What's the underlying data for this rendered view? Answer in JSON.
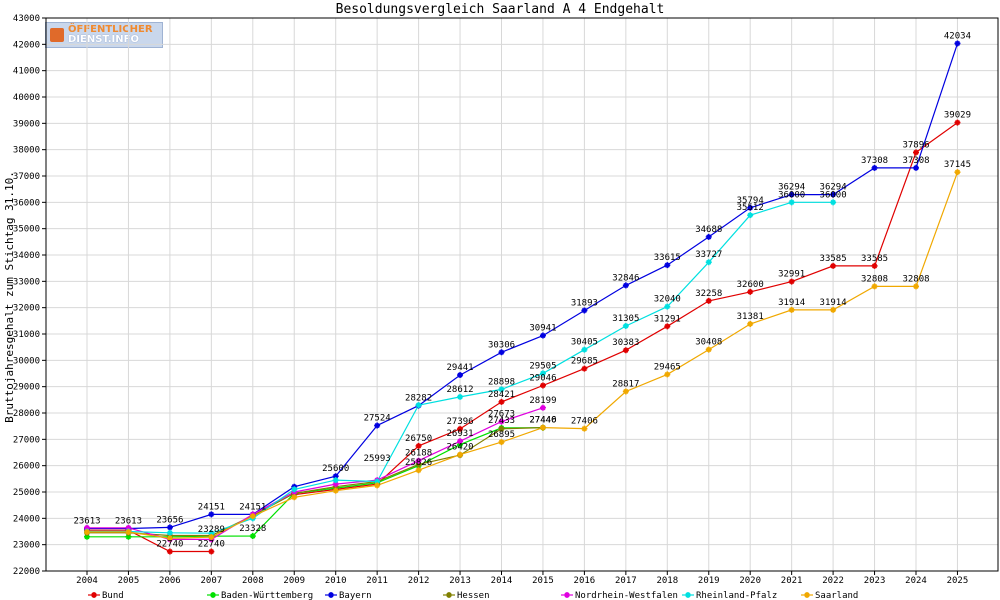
{
  "chart_data": {
    "type": "line",
    "title": "Besoldungsvergleich Saarland A 4 Endgehalt",
    "ylabel": "Bruttojahresgehalt zum Stichtag 31.10.",
    "xlabel": "",
    "ylim": [
      22000,
      43000
    ],
    "yticks": [
      22000,
      23000,
      24000,
      25000,
      26000,
      27000,
      28000,
      29000,
      30000,
      31000,
      32000,
      33000,
      34000,
      35000,
      36000,
      37000,
      38000,
      39000,
      40000,
      41000,
      42000,
      43000
    ],
    "x": [
      2004,
      2005,
      2006,
      2007,
      2008,
      2009,
      2010,
      2011,
      2012,
      2013,
      2014,
      2015,
      2016,
      2017,
      2018,
      2019,
      2020,
      2021,
      2022,
      2023,
      2024,
      2025
    ],
    "grid": true,
    "legend_position": "bottom",
    "series": [
      {
        "name": "Bund",
        "color": "#e00000",
        "values": [
          23550,
          23550,
          22740,
          22740,
          null,
          24900,
          25100,
          25300,
          26750,
          27396,
          28421,
          29046,
          29685,
          30383,
          31291,
          32258,
          32600,
          32991,
          33585,
          33585,
          37896,
          39029
        ]
      },
      {
        "name": "Baden-Württemberg",
        "color": "#00e000",
        "values": [
          23300,
          23300,
          23300,
          23320,
          23328,
          24950,
          25150,
          25350,
          26000,
          26800,
          27433,
          27440,
          null,
          null,
          null,
          null,
          null,
          null,
          null,
          null,
          null,
          null
        ]
      },
      {
        "name": "Bayern",
        "color": "#0000e0",
        "values": [
          23613,
          23613,
          23656,
          24151,
          24151,
          25200,
          25600,
          27524,
          28282,
          29441,
          30306,
          30941,
          31893,
          32846,
          33615,
          34688,
          35794,
          36294,
          36294,
          37308,
          37308,
          42034
        ]
      },
      {
        "name": "Hessen",
        "color": "#808000",
        "values": [
          23450,
          23450,
          23350,
          23350,
          24100,
          24950,
          25200,
          25400,
          26050,
          26400,
          27400,
          27446,
          null,
          null,
          null,
          null,
          null,
          null,
          null,
          null,
          null,
          null
        ]
      },
      {
        "name": "Nordrhein-Westfalen",
        "color": "#e000e0",
        "values": [
          23640,
          23640,
          23200,
          23200,
          24150,
          25000,
          25300,
          25450,
          26188,
          26931,
          27673,
          28199,
          null,
          null,
          null,
          null,
          null,
          null,
          null,
          null,
          null,
          null
        ]
      },
      {
        "name": "Rheinland-Pfalz",
        "color": "#00e0e0",
        "values": [
          23500,
          23500,
          23450,
          23437,
          24000,
          25100,
          25450,
          25400,
          28300,
          28612,
          28898,
          29505,
          30405,
          31305,
          32040,
          33727,
          35512,
          36000,
          36000,
          null,
          null,
          null
        ]
      },
      {
        "name": "Saarland",
        "color": "#f0a800",
        "values": [
          23480,
          23480,
          23240,
          23289,
          24080,
          24800,
          25050,
          25250,
          25826,
          26420,
          26895,
          27446,
          27406,
          28817,
          29465,
          30408,
          31381,
          31914,
          31914,
          32808,
          32808,
          37145
        ]
      }
    ],
    "annotations": [
      {
        "x": 2004,
        "y": 23613,
        "label": "23613"
      },
      {
        "x": 2005,
        "y": 23613,
        "label": "23613"
      },
      {
        "x": 2006,
        "y": 23656,
        "label": "23656"
      },
      {
        "x": 2006,
        "y": 22740,
        "label": "22740"
      },
      {
        "x": 2007,
        "y": 24151,
        "label": "24151"
      },
      {
        "x": 2007,
        "y": 22740,
        "label": "22740"
      },
      {
        "x": 2007,
        "y": 23289,
        "label": "23289"
      },
      {
        "x": 2008,
        "y": 24151,
        "label": "24151"
      },
      {
        "x": 2008,
        "y": 23328,
        "label": "23328"
      },
      {
        "x": 2010,
        "y": 25600,
        "label": "25600"
      },
      {
        "x": 2011,
        "y": 27524,
        "label": "27524"
      },
      {
        "x": 2011,
        "y": 25993,
        "label": "25993"
      },
      {
        "x": 2012,
        "y": 28282,
        "label": "28282"
      },
      {
        "x": 2012,
        "y": 26750,
        "label": "26750"
      },
      {
        "x": 2012,
        "y": 26188,
        "label": "26188"
      },
      {
        "x": 2012,
        "y": 25826,
        "label": "25826"
      },
      {
        "x": 2013,
        "y": 29441,
        "label": "29441"
      },
      {
        "x": 2013,
        "y": 28612,
        "label": "28612"
      },
      {
        "x": 2013,
        "y": 27396,
        "label": "27396"
      },
      {
        "x": 2013,
        "y": 26931,
        "label": "26931"
      },
      {
        "x": 2013,
        "y": 26420,
        "label": "26420"
      },
      {
        "x": 2014,
        "y": 30306,
        "label": "30306"
      },
      {
        "x": 2014,
        "y": 28898,
        "label": "28898"
      },
      {
        "x": 2014,
        "y": 28421,
        "label": "28421"
      },
      {
        "x": 2014,
        "y": 27673,
        "label": "27673"
      },
      {
        "x": 2014,
        "y": 27433,
        "label": "27433"
      },
      {
        "x": 2014,
        "y": 26895,
        "label": "26895"
      },
      {
        "x": 2015,
        "y": 30941,
        "label": "30941"
      },
      {
        "x": 2015,
        "y": 29505,
        "label": "29505"
      },
      {
        "x": 2015,
        "y": 29046,
        "label": "29046"
      },
      {
        "x": 2015,
        "y": 28199,
        "label": "28199"
      },
      {
        "x": 2015,
        "y": 27446,
        "label": "27446"
      },
      {
        "x": 2015,
        "y": 27440,
        "label": "27440"
      },
      {
        "x": 2016,
        "y": 31893,
        "label": "31893"
      },
      {
        "x": 2016,
        "y": 30405,
        "label": "30405"
      },
      {
        "x": 2016,
        "y": 29685,
        "label": "29685"
      },
      {
        "x": 2016,
        "y": 27406,
        "label": "27406"
      },
      {
        "x": 2017,
        "y": 32846,
        "label": "32846"
      },
      {
        "x": 2017,
        "y": 31305,
        "label": "31305"
      },
      {
        "x": 2017,
        "y": 30383,
        "label": "30383"
      },
      {
        "x": 2017,
        "y": 28817,
        "label": "28817"
      },
      {
        "x": 2018,
        "y": 33615,
        "label": "33615"
      },
      {
        "x": 2018,
        "y": 32040,
        "label": "32040"
      },
      {
        "x": 2018,
        "y": 31291,
        "label": "31291"
      },
      {
        "x": 2018,
        "y": 29465,
        "label": "29465"
      },
      {
        "x": 2019,
        "y": 34688,
        "label": "34688"
      },
      {
        "x": 2019,
        "y": 33727,
        "label": "33727"
      },
      {
        "x": 2019,
        "y": 32258,
        "label": "32258"
      },
      {
        "x": 2019,
        "y": 30408,
        "label": "30408"
      },
      {
        "x": 2020,
        "y": 35794,
        "label": "35794"
      },
      {
        "x": 2020,
        "y": 35512,
        "label": "35512"
      },
      {
        "x": 2020,
        "y": 32600,
        "label": "32600"
      },
      {
        "x": 2020,
        "y": 31381,
        "label": "31381"
      },
      {
        "x": 2021,
        "y": 36294,
        "label": "36294"
      },
      {
        "x": 2021,
        "y": 36000,
        "label": "36000"
      },
      {
        "x": 2021,
        "y": 32991,
        "label": "32991"
      },
      {
        "x": 2021,
        "y": 31914,
        "label": "31914"
      },
      {
        "x": 2022,
        "y": 36294,
        "label": "36294"
      },
      {
        "x": 2022,
        "y": 36000,
        "label": "36000"
      },
      {
        "x": 2022,
        "y": 33585,
        "label": "33585"
      },
      {
        "x": 2022,
        "y": 31914,
        "label": "31914"
      },
      {
        "x": 2023,
        "y": 37308,
        "label": "37308"
      },
      {
        "x": 2023,
        "y": 33585,
        "label": "33585"
      },
      {
        "x": 2023,
        "y": 32808,
        "label": "32808"
      },
      {
        "x": 2024,
        "y": 37896,
        "label": "37896"
      },
      {
        "x": 2024,
        "y": 37308,
        "label": "37308"
      },
      {
        "x": 2024,
        "y": 32808,
        "label": "32808"
      },
      {
        "x": 2025,
        "y": 42034,
        "label": "42034"
      },
      {
        "x": 2025,
        "y": 39029,
        "label": "39029"
      },
      {
        "x": 2025,
        "y": 37145,
        "label": "37145"
      }
    ]
  },
  "logo": {
    "line1": "ÖFFENTLICHER",
    "line2": "DIENST.INFO"
  }
}
